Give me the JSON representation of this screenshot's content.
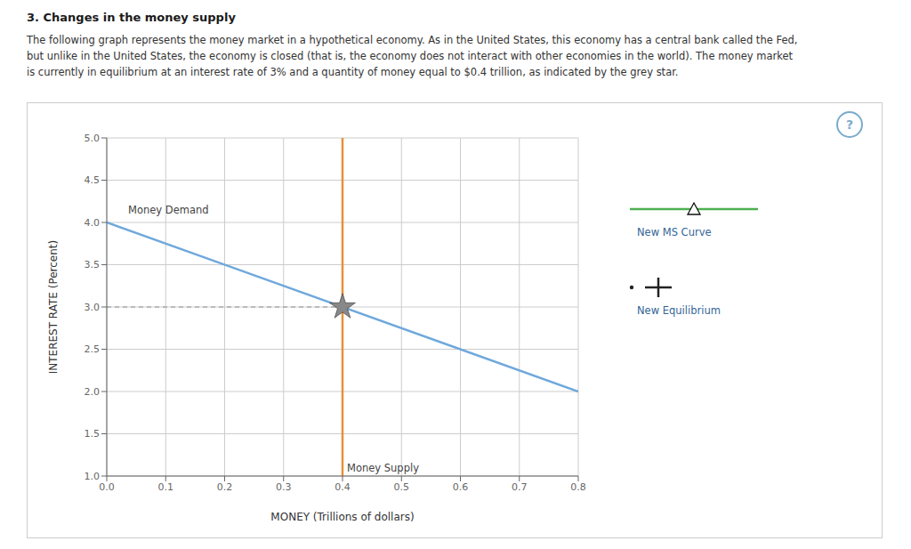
{
  "chart_data": {
    "type": "line",
    "title": "3. Changes in the money supply",
    "subtitle": [
      "The following graph represents the money market in a hypothetical economy. As in the United States, this economy has a central bank called the Fed,",
      "but unlike in the United States, the economy is closed (that is, the economy does not interact with other economies in the world). The money market",
      "is currently in equilibrium at an interest rate of 3% and a quantity of money equal to $0.4 trillion, as indicated by the grey star."
    ],
    "xlabel": "MONEY (Trillions of dollars)",
    "ylabel": "INTEREST RATE (Percent)",
    "xlim": [
      0,
      0.8
    ],
    "ylim": [
      1.0,
      5.0
    ],
    "xticks": [
      {
        "value": 0,
        "label": "0.0"
      },
      0.1,
      0.2,
      0.3,
      0.4,
      0.5,
      0.6,
      0.7,
      0.8
    ],
    "yticks": [
      {
        "value": 1,
        "label": "1.0"
      },
      1.5,
      {
        "value": 2,
        "label": "2.0"
      },
      2.5,
      {
        "value": 3,
        "label": "3.0"
      },
      3.5,
      {
        "value": 4,
        "label": "4.0"
      },
      4.5,
      {
        "value": 5,
        "label": "5.0"
      }
    ],
    "grid": true,
    "legend": "right",
    "annotations": [
      "?"
    ],
    "series": [
      {
        "name": "Money Demand",
        "type": "line",
        "color": "#6fa8dc",
        "x": [
          0.0,
          0.8
        ],
        "values": [
          4.0,
          2.0
        ]
      },
      {
        "name": "Money Supply",
        "type": "vline",
        "color": "#e69138",
        "x": 0.4
      },
      {
        "type": "line",
        "line_style": "dashed",
        "color": "#aaaaaa",
        "x": [
          0,
          0.4
        ],
        "values": [
          3.0,
          3.0
        ]
      },
      {
        "type": "scatter",
        "marker": "star",
        "color": "#888888",
        "x": [
          0.4
        ],
        "values": [
          3.0
        ]
      },
      {
        "name": "New MS Curve",
        "type": "legend",
        "color": "#4caf50",
        "marker": "triangle",
        "values": []
      },
      {
        "name": "New Equilibrium",
        "type": "legend",
        "color": "#222222",
        "marker": "plus",
        "values": []
      }
    ]
  }
}
